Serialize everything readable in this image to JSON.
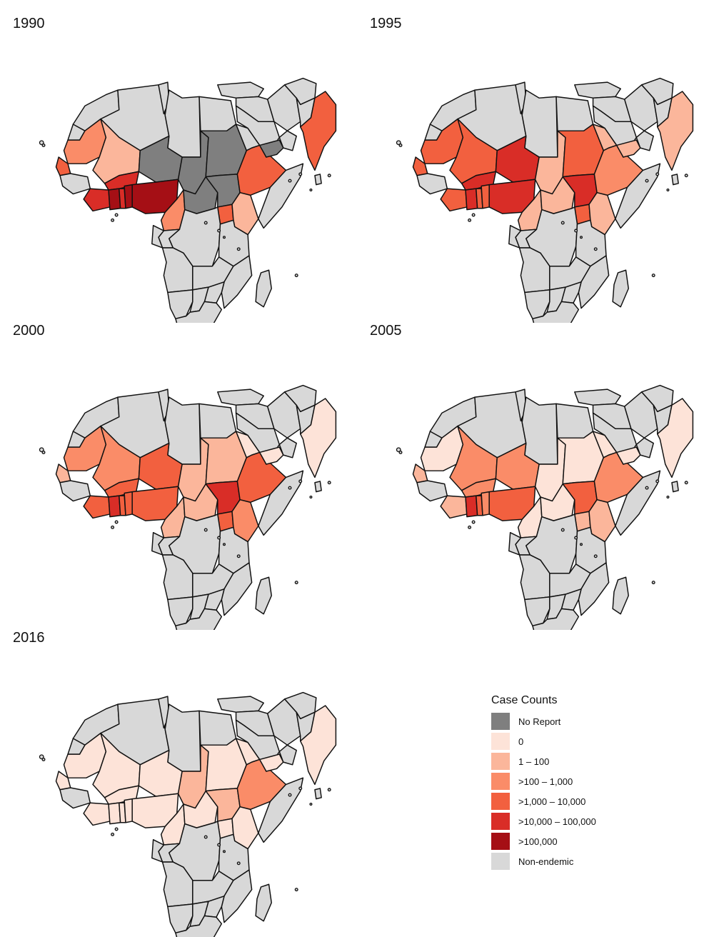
{
  "colors": {
    "no_report": "#7f7f7f",
    "c0": "#fde3d8",
    "c1_100": "#fbb69b",
    "c100_1000": "#fa8c68",
    "c1000_10000": "#f2603f",
    "c10000_100000": "#d92d27",
    "c100000": "#a50f15",
    "non_endemic": "#d8d8d8"
  },
  "panels": [
    {
      "year": "1990",
      "fills": {
        "mauritania": "c100_1000",
        "mali": "c1_100",
        "niger": "no_report",
        "chad": "no_report",
        "sudan": "no_report",
        "senegal": "c1000_10000",
        "burkina": "c10000_100000",
        "ghana": "c100000",
        "cotedivoire": "c10000_100000",
        "togo": "c10000_100000",
        "benin": "c100000",
        "nigeria": "c100000",
        "cameroon": "c100_1000",
        "car": "no_report",
        "southsudan": "no_report",
        "ethiopia": "c1000_10000",
        "eritrea": "non_endemic",
        "uganda": "c1000_10000",
        "kenya": "c1_100",
        "india": "c1000_10000",
        "pakistan": "non_endemic",
        "yemen": "no_report"
      }
    },
    {
      "year": "1995",
      "fills": {
        "mauritania": "c1000_10000",
        "mali": "c1000_10000",
        "niger": "c10000_100000",
        "chad": "c1_100",
        "sudan": "c1000_10000",
        "senegal": "c1000_10000",
        "burkina": "c10000_100000",
        "ghana": "c10000_100000",
        "cotedivoire": "c1000_10000",
        "togo": "c1000_10000",
        "benin": "c1000_10000",
        "nigeria": "c10000_100000",
        "cameroon": "c1_100",
        "car": "c1_100",
        "southsudan": "c10000_100000",
        "ethiopia": "c100_1000",
        "eritrea": "c1_100",
        "uganda": "c1000_10000",
        "kenya": "c1_100",
        "india": "c1_100",
        "pakistan": "non_endemic",
        "yemen": "c1_100"
      }
    },
    {
      "year": "2000",
      "fills": {
        "mauritania": "c100_1000",
        "mali": "c100_1000",
        "niger": "c1000_10000",
        "chad": "c1_100",
        "sudan": "c1_100",
        "senegal": "c1_100",
        "burkina": "c1000_10000",
        "ghana": "c10000_100000",
        "cotedivoire": "c1000_10000",
        "togo": "c1000_10000",
        "benin": "c1000_10000",
        "nigeria": "c1000_10000",
        "cameroon": "c1_100",
        "car": "c1_100",
        "southsudan": "c10000_100000",
        "ethiopia": "c1000_10000",
        "eritrea": "c0",
        "uganda": "c1000_10000",
        "kenya": "c100_1000",
        "india": "c0",
        "pakistan": "non_endemic",
        "yemen": "c0"
      }
    },
    {
      "year": "2005",
      "fills": {
        "mauritania": "c0",
        "mali": "c100_1000",
        "niger": "c100_1000",
        "chad": "c0",
        "sudan": "c0",
        "senegal": "c1_100",
        "burkina": "c100_1000",
        "ghana": "c10000_100000",
        "cotedivoire": "c1_100",
        "togo": "c1000_10000",
        "benin": "c100_1000",
        "nigeria": "c1000_10000",
        "cameroon": "c0",
        "car": "c0",
        "southsudan": "c1000_10000",
        "ethiopia": "c100_1000",
        "eritrea": "c0",
        "uganda": "c1_100",
        "kenya": "c1_100",
        "india": "c0",
        "pakistan": "non_endemic",
        "yemen": "c0"
      }
    },
    {
      "year": "2016",
      "fills": {
        "mauritania": "c0",
        "mali": "c0",
        "niger": "c0",
        "chad": "c1_100",
        "sudan": "c0",
        "senegal": "c0",
        "burkina": "c0",
        "ghana": "c0",
        "cotedivoire": "c0",
        "togo": "c0",
        "benin": "c0",
        "nigeria": "c0",
        "cameroon": "c0",
        "car": "c0",
        "southsudan": "c1_100",
        "ethiopia": "c100_1000",
        "eritrea": "c0",
        "uganda": "c0",
        "kenya": "c0",
        "india": "c0",
        "pakistan": "non_endemic",
        "yemen": "c0"
      }
    }
  ],
  "legend": {
    "title": "Case Counts",
    "items": [
      {
        "label": "No Report",
        "key": "no_report"
      },
      {
        "label": "0",
        "key": "c0"
      },
      {
        "label": "1 – 100",
        "key": "c1_100"
      },
      {
        "label": ">100 – 1,000",
        "key": "c100_1000"
      },
      {
        "label": ">1,000 – 10,000",
        "key": "c1000_10000"
      },
      {
        "label": ">10,000 – 100,000",
        "key": "c10000_100000"
      },
      {
        "label": ">100,000",
        "key": "c100000"
      },
      {
        "label": "Non-endemic",
        "key": "non_endemic"
      }
    ]
  }
}
